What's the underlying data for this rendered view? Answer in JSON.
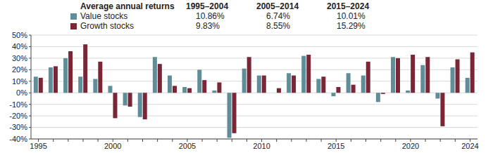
{
  "chart_data": {
    "type": "bar",
    "summary": {
      "title": "Average annual returns",
      "periods": [
        "1995–2004",
        "2005–2014",
        "2015–2024"
      ]
    },
    "categories": [
      "1995",
      null,
      null,
      null,
      null,
      "2000",
      null,
      null,
      null,
      null,
      "2005",
      null,
      null,
      null,
      null,
      "2010",
      null,
      null,
      null,
      null,
      "2015",
      null,
      null,
      null,
      null,
      "2020",
      null,
      null,
      null,
      "2024"
    ],
    "series": [
      {
        "name": "Value stocks",
        "color": "#5f8e98",
        "averages": [
          {
            "value": 10.86,
            "label": "10.86%"
          },
          {
            "value": 6.74,
            "label": "6.74%"
          },
          {
            "value": 10.01,
            "label": "10.01%"
          }
        ],
        "values": [
          14,
          22,
          30,
          14,
          12,
          6,
          -11,
          -21,
          31,
          15,
          5,
          20,
          2,
          -39,
          21,
          15,
          0,
          17,
          32,
          12,
          -3,
          17,
          15,
          -8,
          31,
          2,
          24,
          -5,
          22,
          13
        ]
      },
      {
        "name": "Growth stocks",
        "color": "#7a2637",
        "averages": [
          {
            "value": 9.83,
            "label": "9.83%"
          },
          {
            "value": 8.55,
            "label": "8.55%"
          },
          {
            "value": 15.29,
            "label": "15.29%"
          }
        ],
        "values": [
          13,
          23,
          36,
          42,
          27,
          -22,
          -12,
          -23,
          25,
          6,
          4,
          11,
          9,
          -35,
          31,
          15,
          4,
          15,
          33,
          14,
          5,
          7,
          27,
          -1,
          30,
          33,
          31,
          -29,
          29,
          35
        ]
      }
    ],
    "ylim": [
      -40,
      50
    ],
    "yticks": [
      {
        "value": -40,
        "label": "-40%"
      },
      {
        "value": -30,
        "label": "-30%"
      },
      {
        "value": -20,
        "label": "-20%"
      },
      {
        "value": -10,
        "label": "-10%"
      },
      {
        "value": 0,
        "label": "0%"
      },
      {
        "value": 10,
        "label": "10%"
      },
      {
        "value": 20,
        "label": "20%"
      },
      {
        "value": 30,
        "label": "30%"
      },
      {
        "value": 40,
        "label": "40%"
      },
      {
        "value": 50,
        "label": "50%"
      }
    ],
    "grid": true
  }
}
